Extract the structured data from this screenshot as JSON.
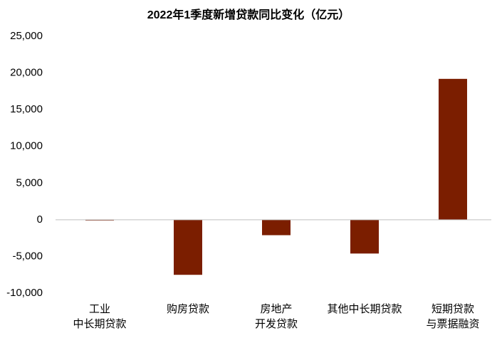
{
  "chart_data": {
    "type": "bar",
    "title": "2022年1季度新增贷款同比变化（亿元）",
    "categories": [
      "工业\n中长期贷款",
      "购房贷款",
      "房地产\n开发贷款",
      "其他中长期贷款",
      "短期贷款\n与票据融资"
    ],
    "values": [
      -100,
      -7500,
      -2100,
      -4600,
      19200
    ],
    "color": "#7b1e00",
    "ylim": [
      -10000,
      25000
    ],
    "yticks": [
      {
        "value": -10000,
        "label": "-10,000"
      },
      {
        "value": -5000,
        "label": "-5,000"
      },
      0,
      {
        "value": 5000,
        "label": "5,000"
      },
      {
        "value": 10000,
        "label": "10,000"
      },
      {
        "value": 15000,
        "label": "15,000"
      },
      {
        "value": 20000,
        "label": "20,000"
      },
      {
        "value": 25000,
        "label": "25,000"
      }
    ],
    "grid": false
  }
}
